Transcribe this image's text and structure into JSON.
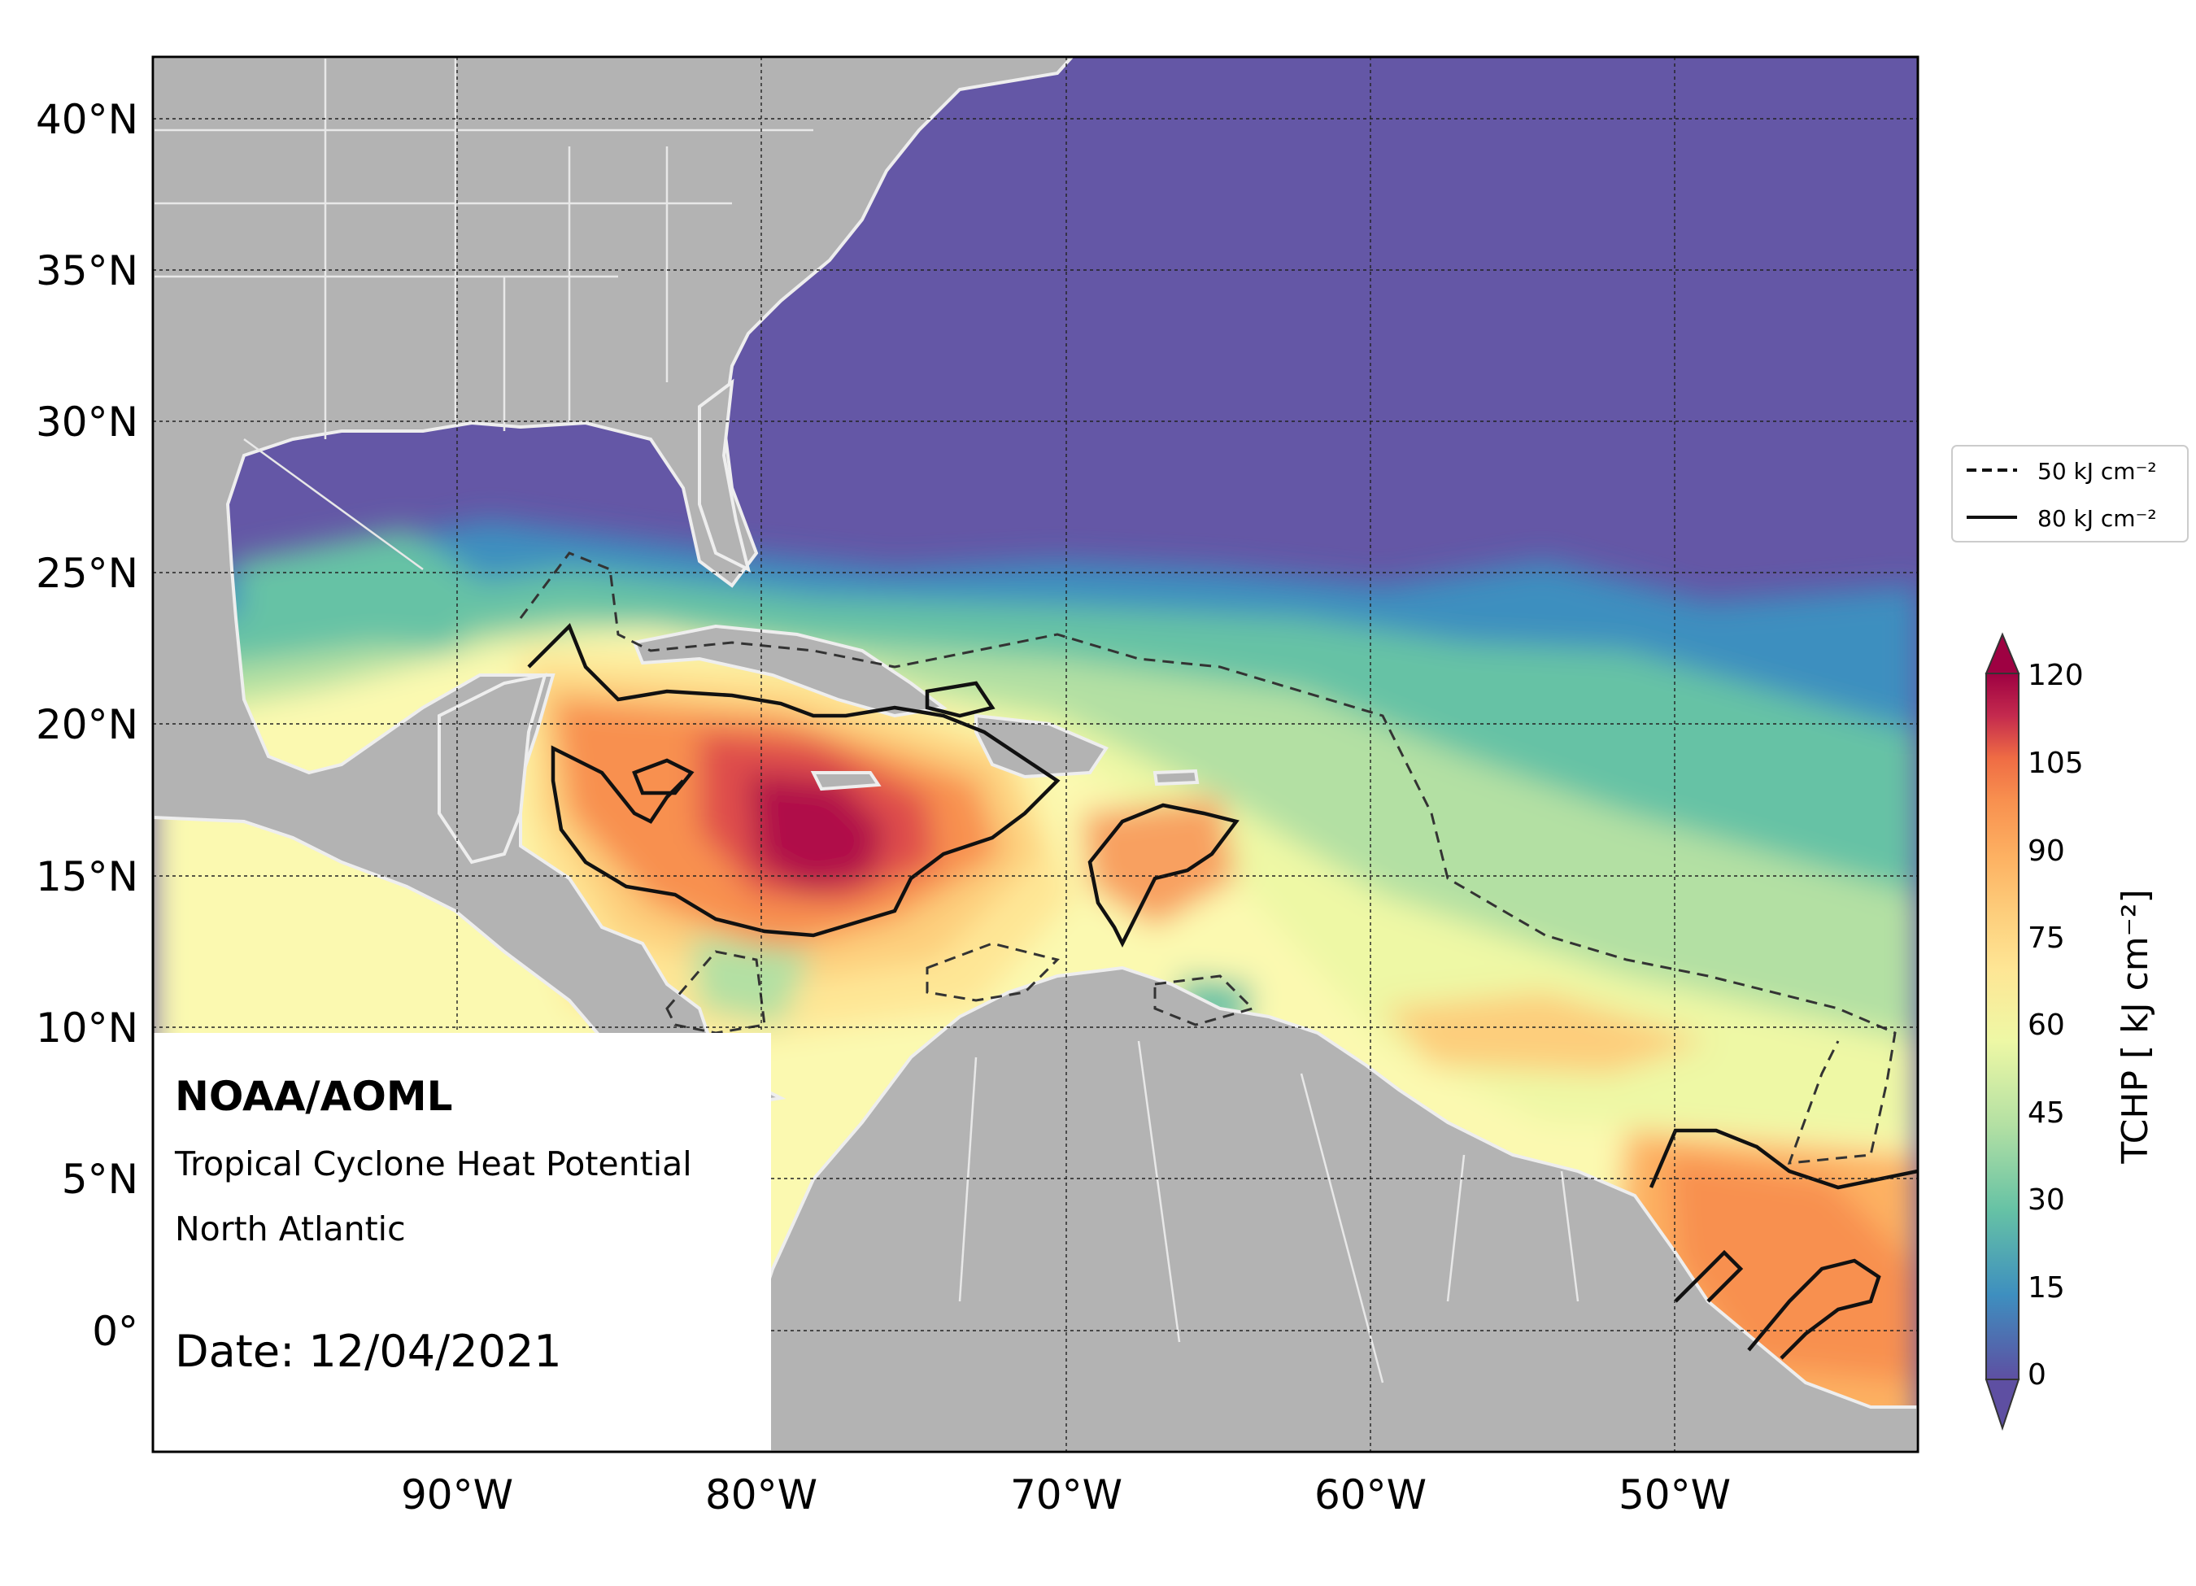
{
  "map": {
    "title": "NOAA/AOML",
    "subtitle": "Tropical Cyclone Heat Potential",
    "region": "North Atlantic",
    "date_label": "Date: 12/04/2021",
    "lon_ticks": [
      "90°W",
      "80°W",
      "70°W",
      "60°W",
      "50°W"
    ],
    "lat_ticks": [
      "40°N",
      "35°N",
      "30°N",
      "25°N",
      "20°N",
      "15°N",
      "10°N",
      "5°N",
      "0°"
    ],
    "extent": {
      "lon_min": -100,
      "lon_max": -42,
      "lat_min": -4,
      "lat_max": 42
    },
    "land_color": "#b3b3b3",
    "border_color": "#e8e8e8",
    "gridlines": true
  },
  "legend": {
    "items": [
      {
        "style": "dashed",
        "label": "50 kJ cm⁻²"
      },
      {
        "style": "solid",
        "label": "80 kJ cm⁻²"
      }
    ]
  },
  "colorbar": {
    "label": "TCHP [ kJ cm⁻²]",
    "ticks": [
      "120",
      "105",
      "90",
      "75",
      "60",
      "45",
      "30",
      "15",
      "0"
    ],
    "range": [
      -5,
      125
    ],
    "colors": [
      "#5e4fa2",
      "#4d6eb0",
      "#3e8fbf",
      "#4fa7b6",
      "#66c2a5",
      "#8dd1a4",
      "#b3e0a3",
      "#d4eda0",
      "#eef8a5",
      "#fbf9b0",
      "#fee695",
      "#fdce7c",
      "#fdb162",
      "#f8904f",
      "#ef6c44",
      "#df4e4b",
      "#c42a4e",
      "#9e0142"
    ]
  }
}
